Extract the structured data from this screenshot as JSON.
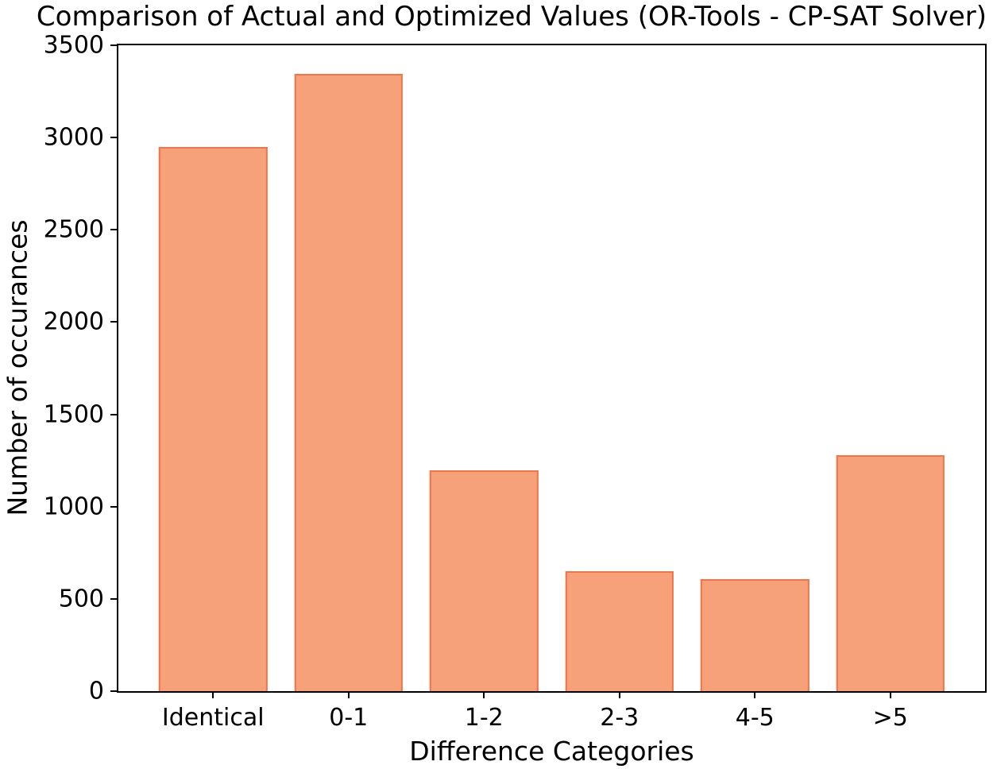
{
  "chart_data": {
    "type": "bar",
    "title": "Comparison of Actual and Optimized Values (OR-Tools - CP-SAT Solver)",
    "xlabel": "Difference Categories",
    "ylabel": "Number of occurances",
    "categories": [
      "Identical",
      "0-1",
      "1-2",
      "2-3",
      "4-5",
      ">5"
    ],
    "values": [
      2950,
      3345,
      1195,
      650,
      605,
      1280
    ],
    "ylim": [
      0,
      3500
    ],
    "yticks": [
      0,
      500,
      1000,
      1500,
      2000,
      2500,
      3000,
      3500
    ],
    "grid": "off",
    "legend": "none",
    "bar_fill_color": "#F7A17A",
    "bar_edge_color": "#EF764A",
    "axis_color": "#000000",
    "background_color": "#FFFFFF"
  }
}
